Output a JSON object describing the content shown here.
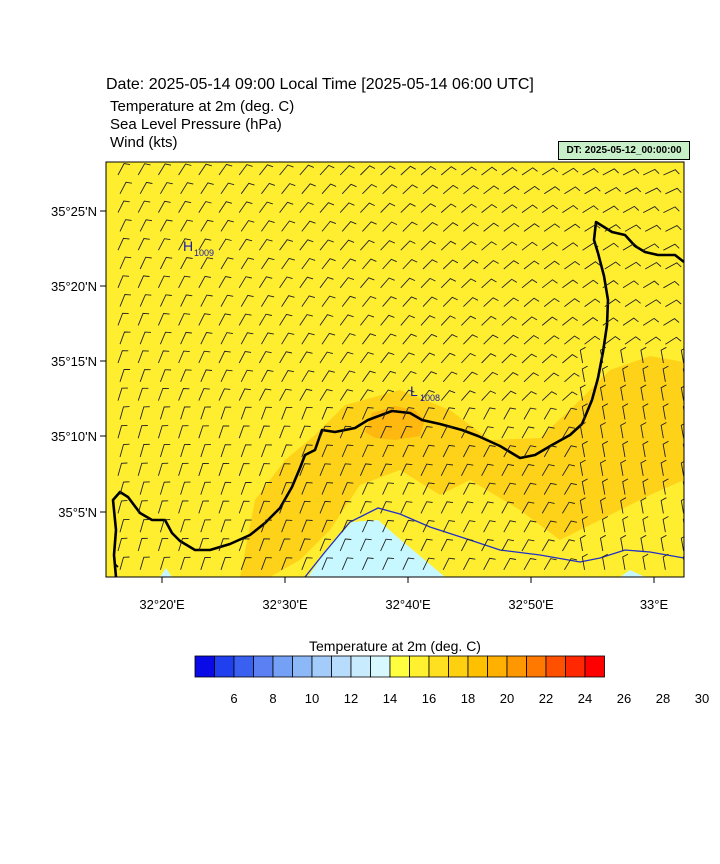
{
  "header": {
    "date_line": "Date: 2025-05-14  09:00 Local Time [2025-05-14  06:00 UTC]",
    "fields": [
      "Temperature at 2m   (deg. C)",
      "Sea Level Pressure   (hPa)",
      "Wind   (kts)"
    ],
    "dt_label": "DT: 2025-05-12_00:00:00"
  },
  "map": {
    "lat_labels": [
      "35°25'N",
      "35°20'N",
      "35°15'N",
      "35°10'N",
      "35°5'N"
    ],
    "lon_labels": [
      "32°20'E",
      "32°30'E",
      "32°40'E",
      "32°50'E",
      "33°E"
    ],
    "pressure_marks": [
      {
        "symbol": "H",
        "value": "1009"
      },
      {
        "symbol": "L",
        "value": "1008"
      }
    ]
  },
  "colorbar": {
    "title": "Temperature at 2m  (deg. C)",
    "tick_labels": [
      "6",
      "8",
      "10",
      "12",
      "14",
      "16",
      "18",
      "20",
      "22",
      "24",
      "26",
      "28",
      "30"
    ],
    "colors": [
      "#0a0ae6",
      "#2040f0",
      "#3a60f2",
      "#5a80f4",
      "#74a0f6",
      "#8cb8f8",
      "#a4ccfa",
      "#b8dcfc",
      "#c8ecfe",
      "#d8f8ff",
      "#ffff40",
      "#fff030",
      "#ffe020",
      "#ffd010",
      "#ffc000",
      "#ffb000",
      "#ff9800",
      "#ff7800",
      "#ff5000",
      "#ff2800",
      "#ff0000"
    ]
  }
}
